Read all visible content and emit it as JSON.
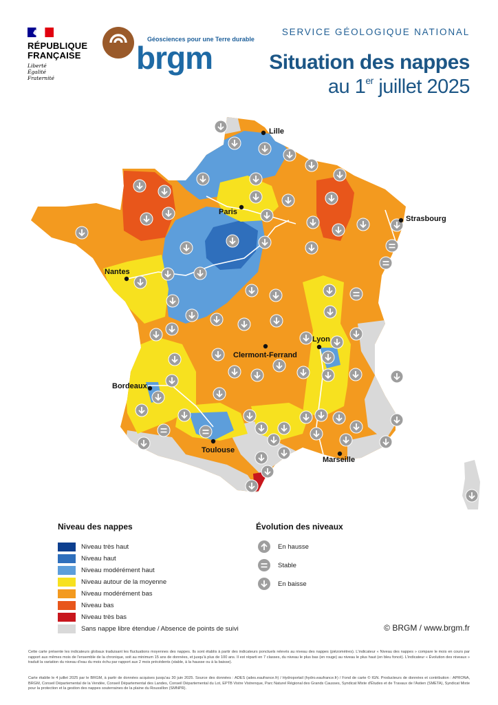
{
  "header": {
    "republic_name": "RÉPUBLIQUE\nFRANÇAISE",
    "motto": [
      "Liberté",
      "Égalité",
      "Fraternité"
    ],
    "brgm_tagline": "Géosciences pour une Terre durable",
    "brgm_word": "brgm",
    "service": "SERVICE GÉOLOGIQUE NATIONAL",
    "title": "Situation des nappes",
    "date_prefix": "au 1",
    "date_sup": "er",
    "date_suffix": " juillet 2025"
  },
  "map": {
    "cities": [
      {
        "name": "Lille"
      },
      {
        "name": "Paris"
      },
      {
        "name": "Strasbourg"
      },
      {
        "name": "Nantes"
      },
      {
        "name": "Lyon"
      },
      {
        "name": "Clermont-Ferrand"
      },
      {
        "name": "Bordeaux"
      },
      {
        "name": "Toulouse"
      },
      {
        "name": "Marseille"
      }
    ]
  },
  "legend": {
    "level_title": "Niveau des nappes",
    "levels": [
      {
        "label": "Niveau très haut",
        "color": "#0d3f8f"
      },
      {
        "label": "Niveau haut",
        "color": "#2f6fbc"
      },
      {
        "label": "Niveau modérément haut",
        "color": "#5d9edb"
      },
      {
        "label": "Niveau autour de la moyenne",
        "color": "#f7e11f"
      },
      {
        "label": "Niveau modérément bas",
        "color": "#f39a1f"
      },
      {
        "label": "Niveau bas",
        "color": "#e8561b"
      },
      {
        "label": "Niveau très bas",
        "color": "#c8161d"
      },
      {
        "label": "Sans nappe libre étendue / Absence de points de suivi",
        "color": "#d9d9d9"
      }
    ],
    "evolution_title": "Évolution des niveaux",
    "evolutions": [
      {
        "label": "En hausse",
        "icon": "arrow-up-icon"
      },
      {
        "label": "Stable",
        "icon": "equals-icon"
      },
      {
        "label": "En baisse",
        "icon": "arrow-down-icon"
      }
    ]
  },
  "copyright": "© BRGM / www.brgm.fr",
  "footer": {
    "p1": "Cette carte présente les indicateurs globaux traduisant les fluctuations moyennes des nappes. Ils sont établis à partir des indicateurs ponctuels relevés au niveau des nappes (piézomètres). L'indicateur « Niveau des nappes » compare le mois en cours par rapport aux mêmes mois de l'ensemble de la chronique, soit au minimum 15 ans de données, et jusqu'à plus de 100 ans. Il est réparti en 7 classes, du niveau le plus bas (en rouge) au niveau le plus haut (en bleu foncé). L'indicateur « Évolution des niveaux » traduit la variation du niveau d'eau du mois échu par rapport aux 2 mois précédents (stable, à la hausse ou à la baisse).",
    "p2": "Carte établie le 4 juillet 2025 par le BRGM, à partir de données acquises jusqu'au 30 juin 2025. Source des données : ADES (ades.eaufrance.fr) / Hydroportail (hydro.eaufrance.fr) / Fond de carte © IGN. Producteurs de données et contribution : APRONA, BRGM, Conseil Départemental de la Vendée, Conseil Départemental des Landes, Conseil Départemental du Lot, EPTB Vistre Vistrenque, Parc Naturel Régional des Grands Causses, Syndicat Mixte d'Études et de Travaux de l'Astien (SMETA), Syndicat Mixte pour la protection et la gestion des nappes souterraines de la plaine du Roussillon (SMNPR)."
  }
}
